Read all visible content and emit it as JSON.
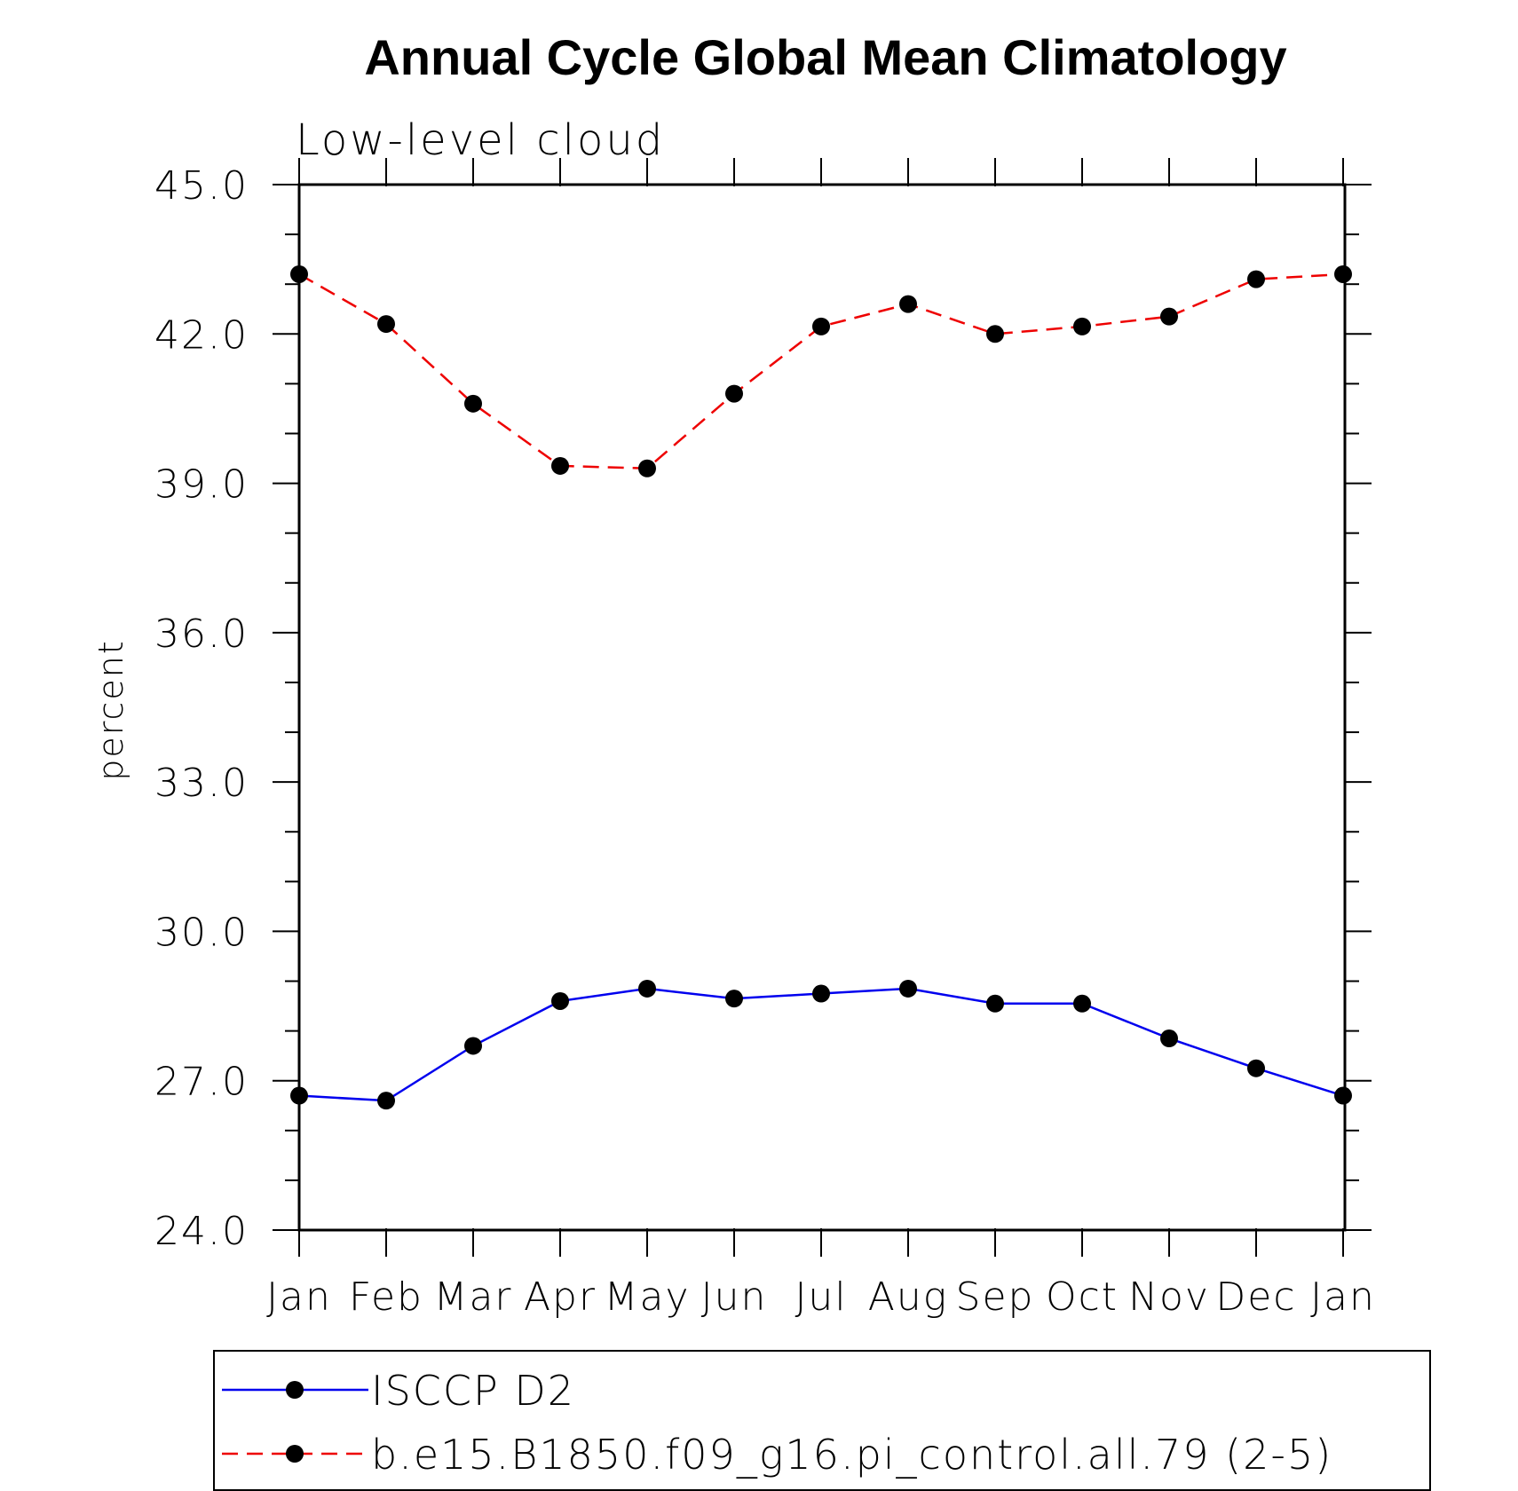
{
  "chart_data": {
    "type": "line",
    "title": "Annual Cycle Global Mean Climatology",
    "subtitle": "Low-level cloud",
    "xlabel": "",
    "ylabel": "percent",
    "categories": [
      "Jan",
      "Feb",
      "Mar",
      "Apr",
      "May",
      "Jun",
      "Jul",
      "Aug",
      "Sep",
      "Oct",
      "Nov",
      "Dec",
      "Jan"
    ],
    "ylim": [
      24.0,
      45.0
    ],
    "yticks": [
      "24.0",
      "27.0",
      "30.0",
      "33.0",
      "36.0",
      "39.0",
      "42.0",
      "45.0"
    ],
    "grid": false,
    "legend_position": "bottom",
    "series": [
      {
        "name": "ISCCP D2",
        "color": "#0000ee",
        "style": "solid",
        "marker": "filled-circle",
        "values": [
          26.7,
          26.6,
          27.7,
          28.6,
          28.85,
          28.65,
          28.75,
          28.85,
          28.55,
          28.55,
          27.85,
          27.25,
          26.7
        ]
      },
      {
        "name": "b.e15.B1850.f09_g16.pi_control.all.79 (2-5)",
        "color": "#ee0000",
        "style": "dashed",
        "marker": "filled-circle",
        "values": [
          43.2,
          42.2,
          40.6,
          39.35,
          39.3,
          40.8,
          42.15,
          42.6,
          42.0,
          42.15,
          42.35,
          43.1,
          43.2
        ]
      }
    ]
  }
}
